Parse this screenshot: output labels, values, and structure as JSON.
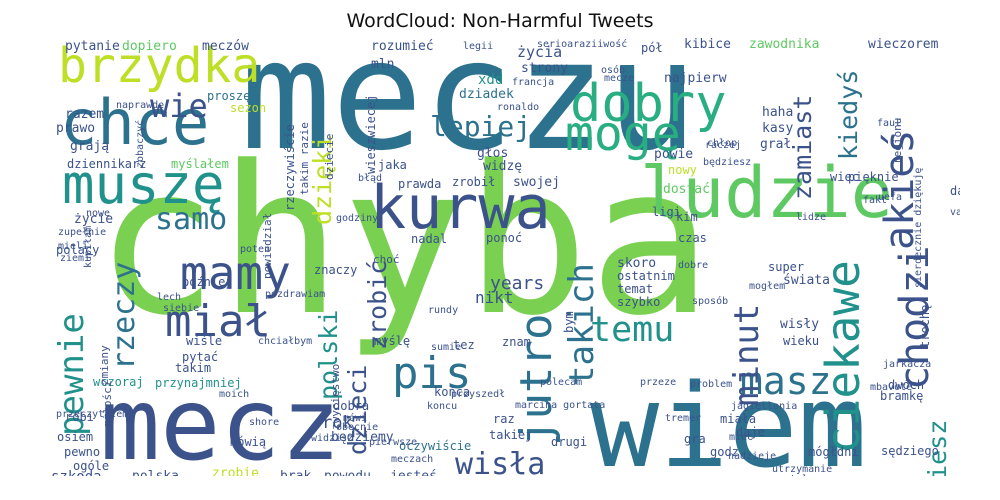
{
  "title": "WordCloud: Non-Harmful Tweets",
  "words": [
    {
      "text": "meczu",
      "color": "#2c728e"
    },
    {
      "text": "chyba",
      "color": "#7ad151"
    },
    {
      "text": "wiem",
      "color": "#2c728e"
    },
    {
      "text": "mecz",
      "color": "#3b528b"
    },
    {
      "text": "kurwa",
      "color": "#3b528b"
    },
    {
      "text": "chce",
      "color": "#2c728e"
    },
    {
      "text": "muszę",
      "color": "#21918c"
    },
    {
      "text": "ludzie",
      "color": "#5ec962"
    },
    {
      "text": "brzydka",
      "color": "#bddf26"
    },
    {
      "text": "dobry",
      "color": "#28ae80"
    },
    {
      "text": "mogę",
      "color": "#28ae80"
    },
    {
      "text": "pis",
      "color": "#2c728e"
    },
    {
      "text": "jutro",
      "color": "#2c728e"
    },
    {
      "text": "ciekawe",
      "color": "#21918c"
    },
    {
      "text": "chodzi",
      "color": "#3b528b"
    },
    {
      "text": "akieś",
      "color": "#3b528b"
    },
    {
      "text": "mamy",
      "color": "#3b528b"
    },
    {
      "text": "miał",
      "color": "#3b528b"
    },
    {
      "text": "masz",
      "color": "#2c728e"
    },
    {
      "text": "temu",
      "color": "#21918c"
    },
    {
      "text": "wisła",
      "color": "#3b528b"
    },
    {
      "text": "pewnie",
      "color": "#21918c"
    },
    {
      "text": "rzeczy",
      "color": "#2c728e"
    },
    {
      "text": "takich",
      "color": "#2c728e"
    },
    {
      "text": "minut",
      "color": "#3b528b"
    },
    {
      "text": "zamiast",
      "color": "#3b528b"
    },
    {
      "text": "kiedyś",
      "color": "#2c728e"
    },
    {
      "text": "lepiej",
      "color": "#2c728e"
    },
    {
      "text": "wie",
      "color": "#3b528b"
    },
    {
      "text": "samo",
      "color": "#2c728e"
    },
    {
      "text": "dzięki",
      "color": "#bddf26"
    },
    {
      "text": "polski",
      "color": "#21918c"
    },
    {
      "text": "dzieci",
      "color": "#3b528b"
    },
    {
      "text": "zrobić",
      "color": "#3b528b"
    },
    {
      "text": "wiesz",
      "color": "#21918c"
    },
    {
      "text": "years",
      "color": "#3b528b"
    },
    {
      "text": "nikt",
      "color": "#3b528b"
    },
    {
      "text": "życia",
      "color": "#3b528b"
    },
    {
      "text": "pytanie",
      "color": "#3b528b"
    },
    {
      "text": "dopiero",
      "color": "#5ec962"
    },
    {
      "text": "meczów",
      "color": "#3b528b"
    },
    {
      "text": "rozumieć",
      "color": "#3b528b"
    },
    {
      "text": "mln",
      "color": "#3b528b"
    },
    {
      "text": "xdd",
      "color": "#21918c"
    },
    {
      "text": "dziadek",
      "color": "#2c728e"
    },
    {
      "text": "strony",
      "color": "#3b528b"
    },
    {
      "text": "najpierw",
      "color": "#3b528b"
    },
    {
      "text": "kibice",
      "color": "#3b528b"
    },
    {
      "text": "zawodnika",
      "color": "#5ec962"
    },
    {
      "text": "wieczorem",
      "color": "#3b528b"
    },
    {
      "text": "pół",
      "color": "#3b528b"
    },
    {
      "text": "haha",
      "color": "#3b528b"
    },
    {
      "text": "kasy",
      "color": "#3b528b"
    },
    {
      "text": "grał",
      "color": "#3b528b"
    },
    {
      "text": "razem",
      "color": "#3b528b"
    },
    {
      "text": "prawo",
      "color": "#3b528b"
    },
    {
      "text": "grają",
      "color": "#3b528b"
    },
    {
      "text": "proszę",
      "color": "#2c728e"
    },
    {
      "text": "sezon",
      "color": "#bddf26"
    },
    {
      "text": "dziennikarz",
      "color": "#3b528b"
    },
    {
      "text": "myślałem",
      "color": "#5ec962"
    },
    {
      "text": "głos",
      "color": "#3b528b"
    },
    {
      "text": "widzę",
      "color": "#3b528b"
    },
    {
      "text": "jaka",
      "color": "#3b528b"
    },
    {
      "text": "prawda",
      "color": "#3b528b"
    },
    {
      "text": "zrobił",
      "color": "#3b528b"
    },
    {
      "text": "swojej",
      "color": "#3b528b"
    },
    {
      "text": "powie",
      "color": "#3b528b"
    },
    {
      "text": "dostać",
      "color": "#5ec962"
    },
    {
      "text": "nowy",
      "color": "#bddf26"
    },
    {
      "text": "ligi",
      "color": "#3b528b"
    },
    {
      "text": "wiec",
      "color": "#3b528b"
    },
    {
      "text": "pięknie",
      "color": "#3b528b"
    },
    {
      "text": "daj",
      "color": "#3b528b"
    },
    {
      "text": "życie",
      "color": "#3b528b"
    },
    {
      "text": "polacy",
      "color": "#3b528b"
    },
    {
      "text": "ponoć",
      "color": "#3b528b"
    },
    {
      "text": "czas",
      "color": "#3b528b"
    },
    {
      "text": "znaczy",
      "color": "#3b528b"
    },
    {
      "text": "skoro",
      "color": "#3b528b"
    },
    {
      "text": "super",
      "color": "#3b528b"
    },
    {
      "text": "świata",
      "color": "#3b528b"
    },
    {
      "text": "ostatnim",
      "color": "#3b528b"
    },
    {
      "text": "temat",
      "color": "#3b528b"
    },
    {
      "text": "szybko",
      "color": "#3b528b"
    },
    {
      "text": "wisły",
      "color": "#3b528b"
    },
    {
      "text": "wieku",
      "color": "#3b528b"
    },
    {
      "text": "później",
      "color": "#3b528b"
    },
    {
      "text": "wiśle",
      "color": "#3b528b"
    },
    {
      "text": "pytać",
      "color": "#3b528b"
    },
    {
      "text": "takim",
      "color": "#3b528b"
    },
    {
      "text": "przynajmniej",
      "color": "#21918c"
    },
    {
      "text": "wczoraj",
      "color": "#21918c"
    },
    {
      "text": "rok",
      "color": "#3b528b"
    },
    {
      "text": "będziemy",
      "color": "#3b528b"
    },
    {
      "text": "oczywiście",
      "color": "#2c728e"
    },
    {
      "text": "takiej",
      "color": "#3b528b"
    },
    {
      "text": "raz",
      "color": "#3b528b"
    },
    {
      "text": "drugi",
      "color": "#3b528b"
    },
    {
      "text": "końca",
      "color": "#3b528b"
    },
    {
      "text": "myślę",
      "color": "#3b528b"
    },
    {
      "text": "znam",
      "color": "#3b528b"
    },
    {
      "text": "robi",
      "color": "#3b528b"
    },
    {
      "text": "osiem",
      "color": "#3b528b"
    },
    {
      "text": "pewno",
      "color": "#3b528b"
    },
    {
      "text": "ogóle",
      "color": "#3b528b"
    },
    {
      "text": "szkoda",
      "color": "#3b528b"
    },
    {
      "text": "polska",
      "color": "#3b528b"
    },
    {
      "text": "zrobię",
      "color": "#bddf26"
    },
    {
      "text": "mówią",
      "color": "#3b528b"
    },
    {
      "text": "brak",
      "color": "#3b528b"
    },
    {
      "text": "powodu",
      "color": "#3b528b"
    },
    {
      "text": "jesteś",
      "color": "#3b528b"
    },
    {
      "text": "dobra",
      "color": "#3b528b"
    },
    {
      "text": "gra",
      "color": "#3b528b"
    },
    {
      "text": "godz",
      "color": "#3b528b"
    },
    {
      "text": "mógłdni",
      "color": "#3b528b"
    },
    {
      "text": "bramkę",
      "color": "#3b528b"
    },
    {
      "text": "dwóch",
      "color": "#3b528b"
    },
    {
      "text": "sędziego",
      "color": "#3b528b"
    },
    {
      "text": "miała",
      "color": "#3b528b"
    },
    {
      "text": "daje",
      "color": "#3b528b"
    },
    {
      "text": "trochę",
      "color": "#3b528b"
    },
    {
      "text": "regionu",
      "color": "#3b528b"
    },
    {
      "text": "rzeczywiście",
      "color": "#3b528b"
    },
    {
      "text": "wieszwiecej",
      "color": "#3b528b"
    },
    {
      "text": "powiedział",
      "color": "#3b528b"
    },
    {
      "text": "zwycięstwo",
      "color": "#3b528b"
    },
    {
      "text": "nadal",
      "color": "#3b528b"
    },
    {
      "text": "bym",
      "color": "#3b528b"
    },
    {
      "text": "kim",
      "color": "#3b528b"
    },
    {
      "text": "tez",
      "color": "#3b528b"
    },
    {
      "text": "choć",
      "color": "#3b528b"
    },
    {
      "text": "zmiany",
      "color": "#3b528b"
    },
    {
      "text": "miłości",
      "color": "#3b528b"
    },
    {
      "text": "takim razie",
      "color": "#3b528b"
    },
    {
      "text": "dziecie",
      "color": "#3b528b"
    },
    {
      "text": "legii",
      "color": "#3b528b"
    },
    {
      "text": "serioaraziiwość",
      "color": "#3b528b"
    },
    {
      "text": "osób",
      "color": "#3b528b"
    },
    {
      "text": "francja",
      "color": "#3b528b"
    },
    {
      "text": "mecze",
      "color": "#3b528b"
    },
    {
      "text": "ronaldo",
      "color": "#3b528b"
    },
    {
      "text": "naprawdę",
      "color": "#3b528b"
    },
    {
      "text": "zobaczyć",
      "color": "#3b528b"
    },
    {
      "text": "chłop",
      "color": "#3b528b"
    },
    {
      "text": "raczej",
      "color": "#3b528b"
    },
    {
      "text": "będziesz",
      "color": "#3b528b"
    },
    {
      "text": "fakt",
      "color": "#3b528b"
    },
    {
      "text": "faul",
      "color": "#3b528b"
    },
    {
      "text": "uefa",
      "color": "#3b528b"
    },
    {
      "text": "lidze",
      "color": "#3b528b"
    },
    {
      "text": "mogłem",
      "color": "#3b528b"
    },
    {
      "text": "dobre",
      "color": "#3b528b"
    },
    {
      "text": "sposób",
      "color": "#3b528b"
    },
    {
      "text": "problem",
      "color": "#3b528b"
    },
    {
      "text": "przeze",
      "color": "#3b528b"
    },
    {
      "text": "polecam",
      "color": "#3b528b"
    },
    {
      "text": "przyszedł",
      "color": "#3b528b"
    },
    {
      "text": "marcina gortata",
      "color": "#3b528b"
    },
    {
      "text": "tremer",
      "color": "#3b528b"
    },
    {
      "text": "miec",
      "color": "#3b528b"
    },
    {
      "text": "nadzieje",
      "color": "#3b528b"
    },
    {
      "text": "utrzymanie",
      "color": "#3b528b"
    },
    {
      "text": "tyle",
      "color": "#3b528b"
    },
    {
      "text": "jagiellonia",
      "color": "#3b528b"
    },
    {
      "text": "moich",
      "color": "#3b528b"
    },
    {
      "text": "widzisz",
      "color": "#3b528b"
    },
    {
      "text": "pierwsze",
      "color": "#3b528b"
    },
    {
      "text": "meczach",
      "color": "#3b528b"
    },
    {
      "text": "shore",
      "color": "#3b528b"
    },
    {
      "text": "przeczytałem",
      "color": "#3b528b"
    },
    {
      "text": "kupiłam",
      "color": "#3b528b"
    },
    {
      "text": "zupełnie",
      "color": "#3b528b"
    },
    {
      "text": "mieli",
      "color": "#3b528b"
    },
    {
      "text": "ziemi",
      "color": "#3b528b"
    },
    {
      "text": "nowe",
      "color": "#3b528b"
    },
    {
      "text": "godziny",
      "color": "#3b528b"
    },
    {
      "text": "poten",
      "color": "#3b528b"
    },
    {
      "text": "lech",
      "color": "#3b528b"
    },
    {
      "text": "siebie",
      "color": "#3b528b"
    },
    {
      "text": "chciałbym",
      "color": "#3b528b"
    },
    {
      "text": "pozdrawiam",
      "color": "#3b528b"
    },
    {
      "text": "rundy",
      "color": "#3b528b"
    },
    {
      "text": "sumie",
      "color": "#3b528b"
    },
    {
      "text": "jarkacza",
      "color": "#3b528b"
    },
    {
      "text": "mbavote",
      "color": "#3b528b"
    },
    {
      "text": "sierdecznie dziękuję",
      "color": "#3b528b"
    },
    {
      "text": "var",
      "color": "#3b528b"
    },
    {
      "text": "błąd",
      "color": "#3b528b"
    },
    {
      "text": "mówi",
      "color": "#3b528b"
    },
    {
      "text": "obecnie",
      "color": "#3b528b"
    },
    {
      "text": "koncu",
      "color": "#3b528b"
    }
  ]
}
